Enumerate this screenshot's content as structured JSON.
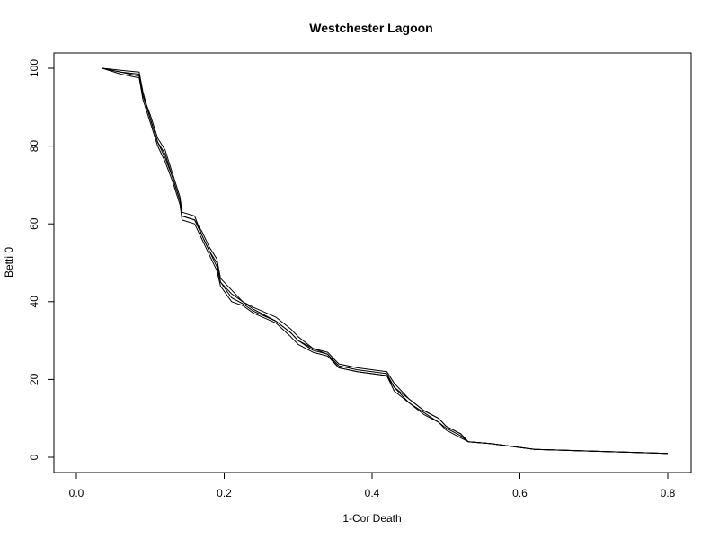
{
  "chart_data": {
    "type": "line",
    "title": "Westchester Lagoon",
    "xlabel": "1-Cor Death",
    "ylabel": "Betti 0",
    "xlim": [
      0.0,
      0.8
    ],
    "ylim": [
      0,
      100
    ],
    "x_ticks": [
      0.0,
      0.2,
      0.4,
      0.6,
      0.8
    ],
    "x_tick_labels": [
      "0.0",
      "0.2",
      "0.4",
      "0.6",
      "0.8"
    ],
    "y_ticks": [
      0,
      20,
      40,
      60,
      80,
      100
    ],
    "y_tick_labels": [
      "0",
      "20",
      "40",
      "60",
      "80",
      "100"
    ],
    "grid": false,
    "legend": "none",
    "series": [
      {
        "color": "#000000",
        "points": [
          [
            0.035,
            100
          ],
          [
            0.06,
            99
          ],
          [
            0.085,
            98
          ],
          [
            0.09,
            93
          ],
          [
            0.1,
            88
          ],
          [
            0.11,
            82
          ],
          [
            0.12,
            79
          ],
          [
            0.13,
            73
          ],
          [
            0.14,
            67
          ],
          [
            0.143,
            63
          ],
          [
            0.16,
            62
          ],
          [
            0.17,
            57
          ],
          [
            0.18,
            53
          ],
          [
            0.19,
            50
          ],
          [
            0.195,
            45
          ],
          [
            0.21,
            42
          ],
          [
            0.225,
            40
          ],
          [
            0.24,
            38
          ],
          [
            0.27,
            35
          ],
          [
            0.29,
            32
          ],
          [
            0.3,
            30
          ],
          [
            0.32,
            28
          ],
          [
            0.34,
            27
          ],
          [
            0.355,
            24
          ],
          [
            0.38,
            23
          ],
          [
            0.42,
            22
          ],
          [
            0.43,
            19
          ],
          [
            0.45,
            15
          ],
          [
            0.47,
            12
          ],
          [
            0.49,
            10
          ],
          [
            0.5,
            8
          ],
          [
            0.52,
            6
          ],
          [
            0.53,
            4
          ],
          [
            0.56,
            3.5
          ],
          [
            0.62,
            2
          ],
          [
            0.8,
            1
          ]
        ]
      },
      {
        "color": "#000000",
        "points": [
          [
            0.035,
            100
          ],
          [
            0.06,
            98.5
          ],
          [
            0.085,
            97.5
          ],
          [
            0.09,
            92
          ],
          [
            0.1,
            86
          ],
          [
            0.11,
            80
          ],
          [
            0.12,
            76
          ],
          [
            0.13,
            71
          ],
          [
            0.14,
            65
          ],
          [
            0.143,
            61
          ],
          [
            0.16,
            60
          ],
          [
            0.17,
            56
          ],
          [
            0.18,
            52
          ],
          [
            0.19,
            48
          ],
          [
            0.195,
            44
          ],
          [
            0.21,
            40
          ],
          [
            0.225,
            39
          ],
          [
            0.24,
            37
          ],
          [
            0.27,
            34.5
          ],
          [
            0.29,
            31
          ],
          [
            0.3,
            29
          ],
          [
            0.32,
            27
          ],
          [
            0.34,
            26
          ],
          [
            0.355,
            23
          ],
          [
            0.38,
            22
          ],
          [
            0.42,
            21
          ],
          [
            0.43,
            17
          ],
          [
            0.45,
            14
          ],
          [
            0.47,
            11
          ],
          [
            0.49,
            9
          ],
          [
            0.5,
            7
          ],
          [
            0.52,
            5
          ],
          [
            0.53,
            4
          ],
          [
            0.56,
            3.5
          ],
          [
            0.62,
            2
          ],
          [
            0.8,
            1
          ]
        ]
      },
      {
        "color": "#000000",
        "points": [
          [
            0.035,
            100
          ],
          [
            0.06,
            99.5
          ],
          [
            0.085,
            99
          ],
          [
            0.09,
            94
          ],
          [
            0.1,
            87
          ],
          [
            0.11,
            81
          ],
          [
            0.12,
            77
          ],
          [
            0.13,
            72
          ],
          [
            0.14,
            66
          ],
          [
            0.143,
            62
          ],
          [
            0.16,
            61
          ],
          [
            0.17,
            58
          ],
          [
            0.18,
            54
          ],
          [
            0.19,
            51
          ],
          [
            0.195,
            46
          ],
          [
            0.21,
            43
          ],
          [
            0.225,
            40
          ],
          [
            0.24,
            38.5
          ],
          [
            0.27,
            36
          ],
          [
            0.29,
            33
          ],
          [
            0.3,
            31
          ],
          [
            0.32,
            28
          ],
          [
            0.34,
            26.5
          ],
          [
            0.355,
            23.5
          ],
          [
            0.38,
            22.5
          ],
          [
            0.42,
            21.5
          ],
          [
            0.43,
            18
          ],
          [
            0.45,
            15
          ],
          [
            0.47,
            12
          ],
          [
            0.49,
            10
          ],
          [
            0.5,
            8
          ],
          [
            0.52,
            6
          ],
          [
            0.53,
            4
          ],
          [
            0.56,
            3.5
          ],
          [
            0.62,
            2
          ],
          [
            0.8,
            1
          ]
        ]
      },
      {
        "color": "#000000",
        "points": [
          [
            0.035,
            100
          ],
          [
            0.06,
            99
          ],
          [
            0.085,
            98.5
          ],
          [
            0.09,
            93
          ],
          [
            0.1,
            87
          ],
          [
            0.11,
            81
          ],
          [
            0.12,
            78
          ],
          [
            0.13,
            72
          ],
          [
            0.14,
            66
          ],
          [
            0.143,
            62
          ],
          [
            0.16,
            61
          ],
          [
            0.17,
            57
          ],
          [
            0.18,
            53
          ],
          [
            0.19,
            49
          ],
          [
            0.195,
            45
          ],
          [
            0.21,
            41
          ],
          [
            0.225,
            39.5
          ],
          [
            0.24,
            37.5
          ],
          [
            0.27,
            35
          ],
          [
            0.29,
            32
          ],
          [
            0.3,
            30
          ],
          [
            0.32,
            27.5
          ],
          [
            0.34,
            26.5
          ],
          [
            0.355,
            23
          ],
          [
            0.38,
            22
          ],
          [
            0.42,
            21
          ],
          [
            0.43,
            18
          ],
          [
            0.45,
            14
          ],
          [
            0.47,
            11.5
          ],
          [
            0.49,
            9
          ],
          [
            0.5,
            7.5
          ],
          [
            0.52,
            5.5
          ],
          [
            0.53,
            4
          ],
          [
            0.56,
            3.5
          ],
          [
            0.62,
            2
          ],
          [
            0.8,
            1
          ]
        ]
      }
    ]
  }
}
